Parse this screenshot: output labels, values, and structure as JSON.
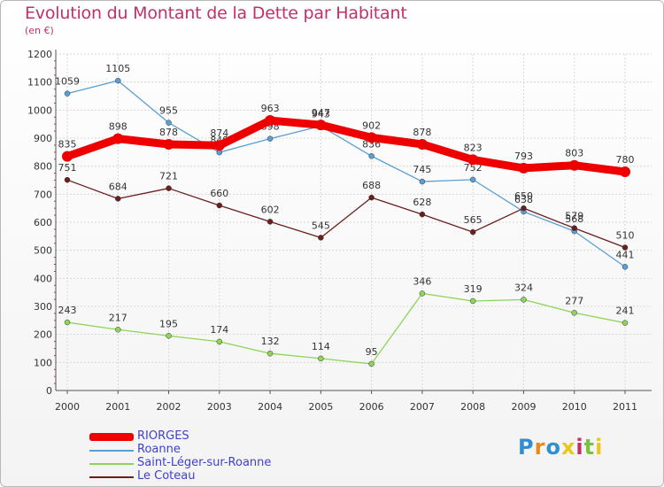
{
  "title": "Evolution du Montant de la Dette par Habitant",
  "unit": "(en €)",
  "logo": {
    "letters": [
      "P",
      "r",
      "o",
      "x",
      "i",
      "t",
      "i"
    ],
    "colors": [
      "#2f8fd0",
      "#e88a1a",
      "#2f8fd0",
      "#e8c81a",
      "#c0306a",
      "#7cc043",
      "#e8c81a"
    ]
  },
  "chart_data": {
    "type": "line",
    "title": "Evolution du Montant de la Dette par Habitant",
    "ylabel": "(en €)",
    "xlabel": "",
    "categories": [
      "2000",
      "2001",
      "2002",
      "2003",
      "2004",
      "2005",
      "2006",
      "2007",
      "2008",
      "2009",
      "2010",
      "2011"
    ],
    "ylim": [
      0,
      1200
    ],
    "yticks": [
      "0",
      "100",
      "200",
      "300",
      "400",
      "500",
      "600",
      "700",
      "800",
      "900",
      "1000",
      "1100",
      "1200"
    ],
    "grid": true,
    "series": [
      {
        "name": "Roanne",
        "color": "#5a9fd4",
        "values": [
          1059,
          1105,
          955,
          849,
          898,
          943,
          836,
          745,
          752,
          638,
          568,
          441
        ]
      },
      {
        "name": "Saint-Léger-sur-Roanne",
        "color": "#8fd45a",
        "values": [
          243,
          217,
          195,
          174,
          132,
          114,
          95,
          346,
          319,
          324,
          277,
          241
        ]
      },
      {
        "name": "Le Coteau",
        "color": "#6b1e1e",
        "values": [
          751,
          684,
          721,
          660,
          602,
          545,
          688,
          628,
          565,
          650,
          579,
          510
        ]
      },
      {
        "name": "RIORGES",
        "color": "#ee0000",
        "values": [
          835,
          898,
          878,
          874,
          963,
          947,
          902,
          878,
          823,
          793,
          803,
          780
        ]
      }
    ]
  },
  "legend": [
    {
      "name": "RIORGES",
      "color": "#ee0000"
    },
    {
      "name": "Roanne",
      "color": "#5a9fd4"
    },
    {
      "name": "Saint-Léger-sur-Roanne",
      "color": "#8fd45a"
    },
    {
      "name": "Le Coteau",
      "color": "#6b1e1e"
    }
  ]
}
